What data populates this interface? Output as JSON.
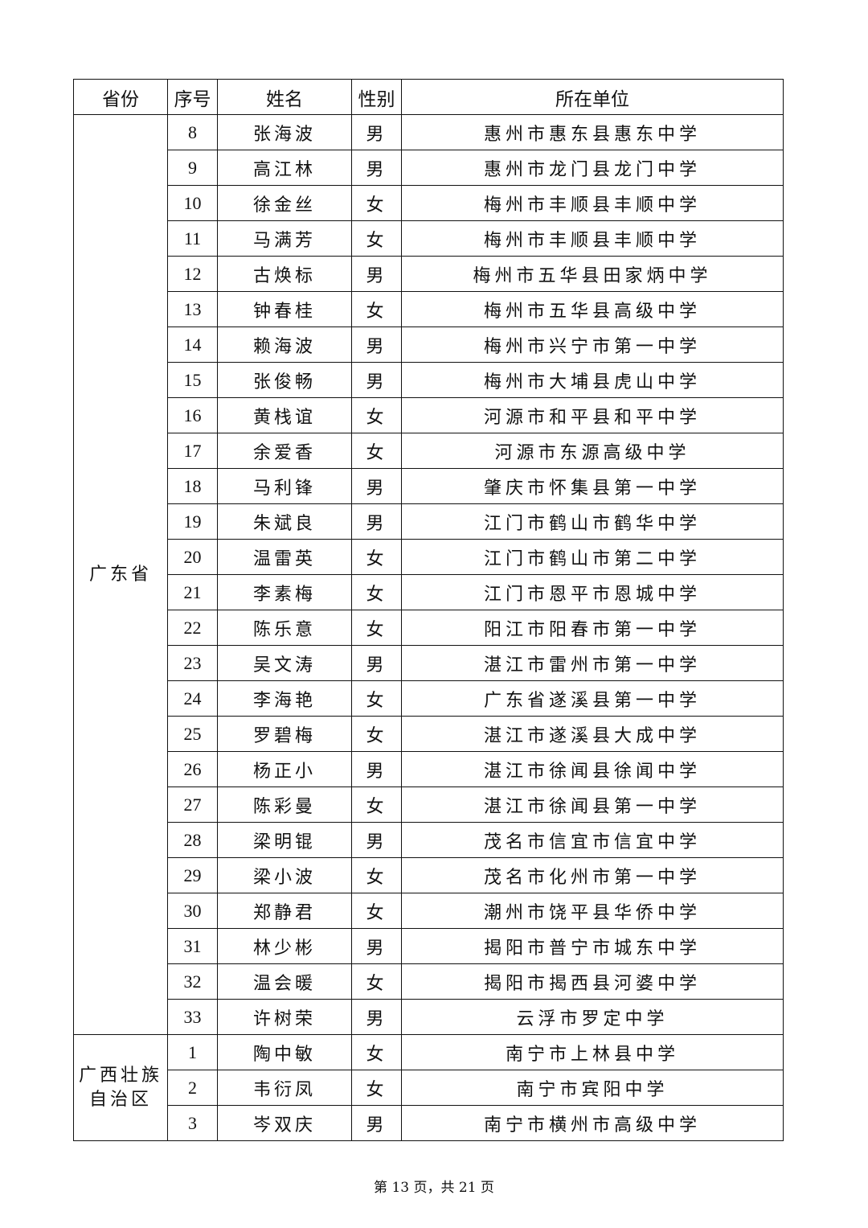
{
  "table": {
    "headers": [
      "省份",
      "序号",
      "姓名",
      "性别",
      "所在单位"
    ],
    "groups": [
      {
        "province": "广东省",
        "rows": [
          [
            "8",
            "张海波",
            "男",
            "惠州市惠东县惠东中学"
          ],
          [
            "9",
            "高江林",
            "男",
            "惠州市龙门县龙门中学"
          ],
          [
            "10",
            "徐金丝",
            "女",
            "梅州市丰顺县丰顺中学"
          ],
          [
            "11",
            "马满芳",
            "女",
            "梅州市丰顺县丰顺中学"
          ],
          [
            "12",
            "古焕标",
            "男",
            "梅州市五华县田家炳中学"
          ],
          [
            "13",
            "钟春桂",
            "女",
            "梅州市五华县高级中学"
          ],
          [
            "14",
            "赖海波",
            "男",
            "梅州市兴宁市第一中学"
          ],
          [
            "15",
            "张俊畅",
            "男",
            "梅州市大埔县虎山中学"
          ],
          [
            "16",
            "黄栈谊",
            "女",
            "河源市和平县和平中学"
          ],
          [
            "17",
            "余爱香",
            "女",
            "河源市东源高级中学"
          ],
          [
            "18",
            "马利锋",
            "男",
            "肇庆市怀集县第一中学"
          ],
          [
            "19",
            "朱斌良",
            "男",
            "江门市鹤山市鹤华中学"
          ],
          [
            "20",
            "温雷英",
            "女",
            "江门市鹤山市第二中学"
          ],
          [
            "21",
            "李素梅",
            "女",
            "江门市恩平市恩城中学"
          ],
          [
            "22",
            "陈乐意",
            "女",
            "阳江市阳春市第一中学"
          ],
          [
            "23",
            "吴文涛",
            "男",
            "湛江市雷州市第一中学"
          ],
          [
            "24",
            "李海艳",
            "女",
            "广东省遂溪县第一中学"
          ],
          [
            "25",
            "罗碧梅",
            "女",
            "湛江市遂溪县大成中学"
          ],
          [
            "26",
            "杨正小",
            "男",
            "湛江市徐闻县徐闻中学"
          ],
          [
            "27",
            "陈彩曼",
            "女",
            "湛江市徐闻县第一中学"
          ],
          [
            "28",
            "梁明锟",
            "男",
            "茂名市信宜市信宜中学"
          ],
          [
            "29",
            "梁小波",
            "女",
            "茂名市化州市第一中学"
          ],
          [
            "30",
            "郑静君",
            "女",
            "潮州市饶平县华侨中学"
          ],
          [
            "31",
            "林少彬",
            "男",
            "揭阳市普宁市城东中学"
          ],
          [
            "32",
            "温会暖",
            "女",
            "揭阳市揭西县河婆中学"
          ],
          [
            "33",
            "许树荣",
            "男",
            "云浮市罗定中学"
          ]
        ]
      },
      {
        "province": "广西壮族自治区",
        "province_lines": [
          "广西壮族",
          "自治区"
        ],
        "rows": [
          [
            "1",
            "陶中敏",
            "女",
            "南宁市上林县中学"
          ],
          [
            "2",
            "韦衍凤",
            "女",
            "南宁市宾阳中学"
          ],
          [
            "3",
            "岑双庆",
            "男",
            "南宁市横州市高级中学"
          ]
        ]
      }
    ]
  },
  "footer": "第 13 页，共 21 页"
}
